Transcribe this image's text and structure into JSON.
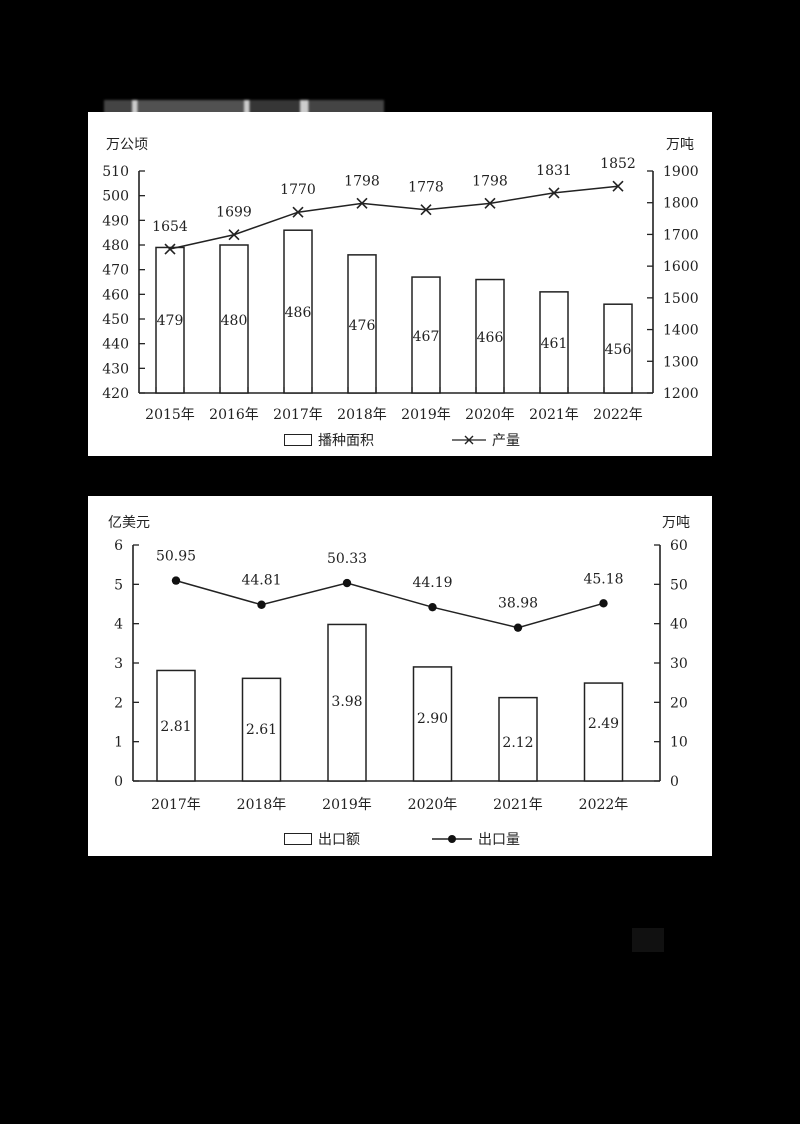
{
  "page": {
    "title_strip": "",
    "background": "#000000"
  },
  "chart_data": [
    {
      "type": "bar+line",
      "title": "",
      "categories": [
        "2015年",
        "2016年",
        "2017年",
        "2018年",
        "2019年",
        "2020年",
        "2021年",
        "2022年"
      ],
      "series": [
        {
          "name": "播种面积",
          "type": "bar",
          "axis": "left",
          "values": [
            479,
            480,
            486,
            476,
            467,
            466,
            461,
            456
          ]
        },
        {
          "name": "产量",
          "type": "line",
          "marker": "x",
          "axis": "right",
          "values": [
            1654,
            1699,
            1770,
            1798,
            1778,
            1798,
            1831,
            1852
          ]
        }
      ],
      "left_axis": {
        "label": "万公顷",
        "ylim": [
          420,
          510
        ],
        "ticks": [
          420,
          430,
          440,
          450,
          460,
          470,
          480,
          490,
          500,
          510
        ]
      },
      "right_axis": {
        "label": "万吨",
        "ylim": [
          1200,
          1900
        ],
        "ticks": [
          1200,
          1300,
          1400,
          1500,
          1600,
          1700,
          1800,
          1900
        ]
      },
      "legend": {
        "position": "bottom",
        "entries": [
          "播种面积",
          "产量"
        ]
      },
      "grid": false
    },
    {
      "type": "bar+line",
      "title": "",
      "categories": [
        "2017年",
        "2018年",
        "2019年",
        "2020年",
        "2021年",
        "2022年"
      ],
      "series": [
        {
          "name": "出口额",
          "type": "bar",
          "axis": "left",
          "values": [
            2.81,
            2.61,
            3.98,
            2.9,
            2.12,
            2.49
          ],
          "labels": [
            "2.81",
            "2.61",
            "3.98",
            "2.90",
            "2.12",
            "2.49"
          ]
        },
        {
          "name": "出口量",
          "type": "line",
          "marker": "dot",
          "axis": "right",
          "values": [
            50.95,
            44.81,
            50.33,
            44.19,
            38.98,
            45.18
          ],
          "labels": [
            "50.95",
            "44.81",
            "50.33",
            "44.19",
            "38.98",
            "45.18"
          ]
        }
      ],
      "left_axis": {
        "label": "亿美元",
        "ylim": [
          0,
          6
        ],
        "ticks": [
          0,
          1,
          2,
          3,
          4,
          5,
          6
        ]
      },
      "right_axis": {
        "label": "万吨",
        "ylim": [
          0,
          60
        ],
        "ticks": [
          0,
          10,
          20,
          30,
          40,
          50,
          60
        ]
      },
      "legend": {
        "position": "bottom",
        "entries": [
          "出口额",
          "出口量"
        ]
      },
      "grid": false
    }
  ]
}
